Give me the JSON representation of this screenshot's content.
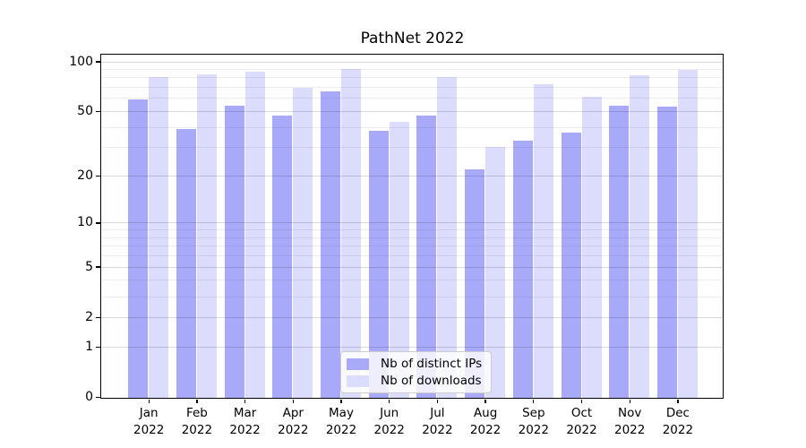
{
  "chart_data": {
    "type": "bar",
    "title": "PathNet 2022",
    "categories": [
      "Jan",
      "Feb",
      "Mar",
      "Apr",
      "May",
      "Jun",
      "Jul",
      "Aug",
      "Sep",
      "Oct",
      "Nov",
      "Dec"
    ],
    "year": "2022",
    "series": [
      {
        "name": "Nb of distinct IPs",
        "color": "#a9a9fa",
        "values": [
          59,
          39,
          54,
          47,
          66,
          38,
          47,
          22,
          33,
          37,
          54,
          53
        ]
      },
      {
        "name": "Nb of downloads",
        "color": "#dcdcfc",
        "values": [
          80,
          83,
          87,
          69,
          90,
          43,
          80,
          30,
          73,
          61,
          82,
          89
        ]
      }
    ],
    "y_scale": "log1p",
    "y_major_ticks": [
      0,
      1,
      2,
      5,
      10,
      20,
      50,
      100
    ],
    "y_minor_gridlines": [
      3,
      4,
      6,
      7,
      8,
      9,
      30,
      40,
      60,
      70,
      80,
      90
    ],
    "ylim": [
      0,
      110
    ],
    "xlabel": "",
    "ylabel": "",
    "grid": "both",
    "legend_position": "lower center",
    "axis_color": "#000000",
    "grid_major_color": "#d4d4d4",
    "grid_minor_color": "#ebebeb"
  }
}
